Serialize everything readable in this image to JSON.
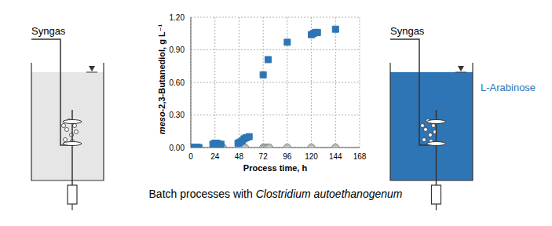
{
  "chart_data": {
    "type": "scatter",
    "x_label": "Process time, h",
    "y_label": "meso-2,3-Butanediol, g L⁻¹",
    "xlim": [
      0,
      168
    ],
    "xticks": [
      0,
      24,
      48,
      72,
      96,
      120,
      144,
      168
    ],
    "ylim": [
      0,
      1.2
    ],
    "yticks": [
      {
        "value": 0,
        "label": "0.00"
      },
      {
        "value": 0.3,
        "label": "0.30"
      },
      {
        "value": 0.6,
        "label": "0.60"
      },
      {
        "value": 0.9,
        "label": "0.90"
      },
      {
        "value": 1.2,
        "label": "1.20"
      }
    ],
    "grid": true,
    "series": [
      {
        "color": "#c0c0c0",
        "marker": "circle",
        "x": [
          0,
          2,
          4,
          6,
          8,
          24,
          26,
          28,
          30,
          32,
          48,
          50,
          52,
          54,
          72,
          74,
          76,
          78,
          96,
          120,
          144
        ],
        "values": [
          0,
          0,
          0,
          0,
          0,
          0,
          0,
          0,
          0,
          0,
          0,
          0,
          0,
          0,
          0,
          0,
          0,
          0,
          0,
          0,
          0
        ]
      },
      {
        "color": "#2e75b6",
        "marker": "square",
        "x": [
          0,
          2,
          4,
          6,
          8,
          22,
          24,
          26,
          28,
          30,
          47,
          49,
          51,
          53,
          55,
          58,
          72,
          77,
          96,
          120,
          122,
          124,
          126,
          144
        ],
        "values": [
          0,
          0,
          0,
          0,
          0,
          0.03,
          0.04,
          0.04,
          0.03,
          0.03,
          0.04,
          0.05,
          0.06,
          0.08,
          0.09,
          0.1,
          0.67,
          0.81,
          0.97,
          1.04,
          1.05,
          1.06,
          1.06,
          1.09
        ]
      }
    ]
  },
  "diagram": {
    "left_reactor": {
      "gas_label": "Syngas"
    },
    "right_reactor": {
      "gas_label": "Syngas",
      "medium_label": "L-Arabinose"
    },
    "caption": {
      "text": "Batch processes with",
      "organism": "Clostridium autoethanogenum"
    }
  }
}
